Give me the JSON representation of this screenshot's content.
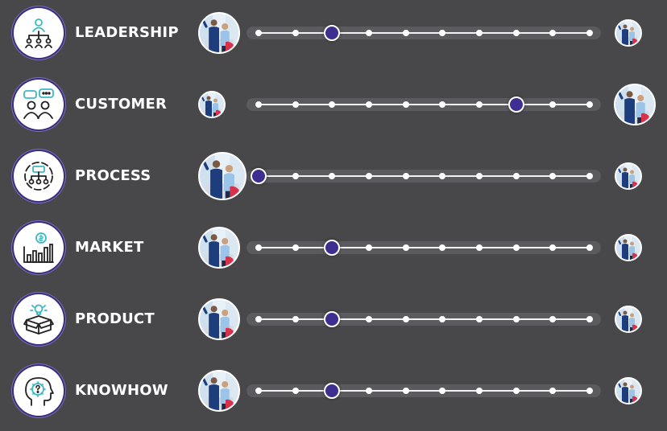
{
  "colors": {
    "background": "#48474a",
    "knob": "#3d2e8f",
    "icon_accent": "#3bb8c4",
    "icon_ring": "#3a2f7a"
  },
  "tick_count": 10,
  "rows": [
    {
      "label": "LEADERSHIP",
      "icon": "leadership-org-chart-icon",
      "value": 2,
      "left_photo_size": "large",
      "right_photo_size": "small"
    },
    {
      "label": "CUSTOMER",
      "icon": "customer-chat-icon",
      "value": 7,
      "left_photo_size": "small",
      "right_photo_size": "large"
    },
    {
      "label": "PROCESS",
      "icon": "process-flow-icon",
      "value": 0,
      "left_photo_size": "large",
      "right_photo_size": "small"
    },
    {
      "label": "MARKET",
      "icon": "market-growth-icon",
      "value": 2,
      "left_photo_size": "large",
      "right_photo_size": "small"
    },
    {
      "label": "PRODUCT",
      "icon": "product-box-icon",
      "value": 2,
      "left_photo_size": "large",
      "right_photo_size": "small"
    },
    {
      "label": "KNOWHOW",
      "icon": "knowhow-head-gear-icon",
      "value": 2,
      "left_photo_size": "large",
      "right_photo_size": "small"
    }
  ]
}
